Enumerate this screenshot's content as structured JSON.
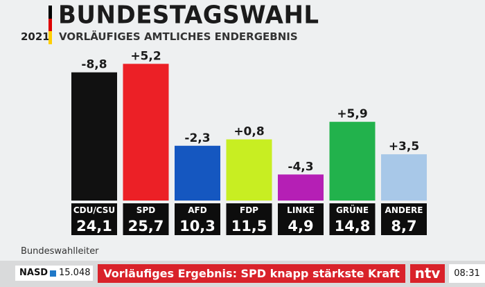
{
  "header": {
    "year": "2021",
    "title": "BUNDESTAGSWAHL",
    "subtitle": "VORLÄUFIGES AMTLICHES ENDERGEBNIS",
    "flag_colors": [
      "#000000",
      "#dd0000",
      "#ffce00"
    ]
  },
  "chart_data": {
    "type": "bar",
    "categories": [
      "CDU/CSU",
      "SPD",
      "AFD",
      "FDP",
      "LINKE",
      "GRÜNE",
      "ANDERE"
    ],
    "values": [
      24.1,
      25.7,
      10.3,
      11.5,
      4.9,
      14.8,
      8.7
    ],
    "value_labels": [
      "24,1",
      "25,7",
      "10,3",
      "11,5",
      "4,9",
      "14,8",
      "8,7"
    ],
    "change_labels": [
      "-8,8",
      "+5,2",
      "-2,3",
      "+0,8",
      "-4,3",
      "+5,9",
      "+3,5"
    ],
    "colors": [
      "#111111",
      "#ec2026",
      "#1557c0",
      "#c8ee22",
      "#b51fb5",
      "#22b24c",
      "#a8c8e8"
    ],
    "title": "",
    "ylim": [
      0,
      26
    ],
    "grid": false
  },
  "source": "Bundeswahlleiter",
  "ticker": {
    "nasd_label": "NASD",
    "nasd_value": "15.048",
    "headline": "Vorläufiges Ergebnis: SPD knapp stärkste Kraft",
    "logo": "ntv",
    "time": "08:31"
  }
}
